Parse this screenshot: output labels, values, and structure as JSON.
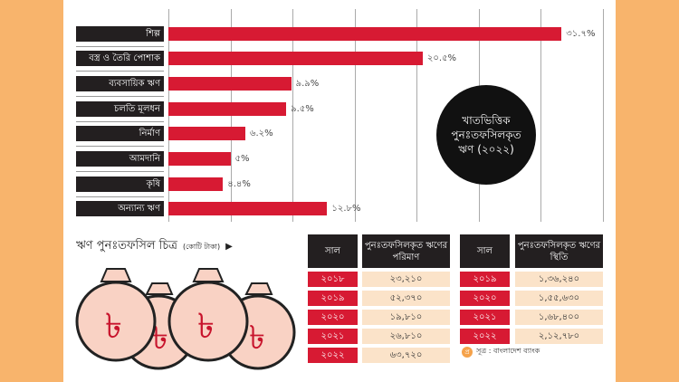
{
  "colors": {
    "background": "#f8b46c",
    "bar": "#d71a33",
    "label_bg": "#231f20",
    "cell_bg": "#fbe3c9"
  },
  "chart_data": {
    "type": "bar",
    "orientation": "horizontal",
    "title": "খাতভিত্তিক পুনঃতফসিলকৃত ঋণ (২০২২)",
    "categories": [
      "শিল্প",
      "বস্ত্র ও তৈরি পোশাক",
      "ব্যবসায়িক ঋণ",
      "চলতি মূলধন",
      "নির্মাণ",
      "আমদানি",
      "কৃষি",
      "অন্যান্য ঋণ"
    ],
    "values": [
      31.7,
      20.5,
      9.9,
      9.5,
      6.2,
      5,
      4.4,
      12.8
    ],
    "value_labels": [
      "৩১.৭%",
      "২০.৫%",
      "৯.৯%",
      "৯.৫%",
      "৬.২%",
      "৫%",
      "৪.৪%",
      "১২.৮%"
    ],
    "unit": "%",
    "xlim": [
      0,
      35
    ],
    "grid": true
  },
  "circle": {
    "line1": "খাতভিত্তিক",
    "line2": "পুনঃতফসিলকৃত",
    "line3": "ঋণ (২০২২)"
  },
  "section": {
    "title": "ঋণ পুনঃতফসিল চিত্র",
    "unit": "(কোটি টাকা)",
    "arrow": "▶",
    "currency_icon": "taka-bag-icon"
  },
  "table1": {
    "headers": [
      "সাল",
      "পুনঃতফসিলকৃত ঋণের পরিমাণ"
    ],
    "rows": [
      [
        "২০১৮",
        "২৩,২১০"
      ],
      [
        "২০১৯",
        "৫২,৩৭০"
      ],
      [
        "২০২০",
        "১৯,৮১০"
      ],
      [
        "২০২১",
        "২৬,৮১০"
      ],
      [
        "২০২২",
        "৬৩,৭২০"
      ]
    ]
  },
  "table2": {
    "headers": [
      "সাল",
      "পুনঃতফসিলকৃত ঋণের স্থিতি"
    ],
    "rows": [
      [
        "২০১৯",
        "১,৩৬,২৪০"
      ],
      [
        "২০২০",
        "১,৫৫,৬৩০"
      ],
      [
        "২০২১",
        "১,৬৮,৪০০"
      ],
      [
        "২০২২",
        "২,১২,৭৮০"
      ]
    ]
  },
  "source": {
    "logo": "প্র",
    "text": "সূত্র : বাংলাদেশ ব্যাংক"
  }
}
